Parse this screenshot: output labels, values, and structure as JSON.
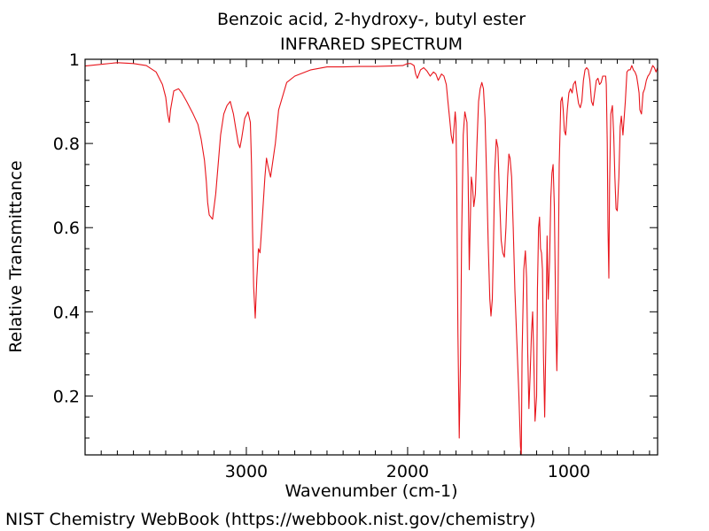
{
  "footer": "NIST Chemistry WebBook (https://webbook.nist.gov/chemistry)",
  "chart_data": {
    "type": "line",
    "title": "Benzoic acid, 2-hydroxy-, butyl ester",
    "subtitle": "INFRARED SPECTRUM",
    "xlabel": "Wavenumber (cm-1)",
    "ylabel": "Relative Transmittance",
    "xlim": [
      4000,
      450
    ],
    "ylim": [
      0.06,
      1.0
    ],
    "x_reversed": true,
    "x_ticks": [
      3000,
      2000,
      1000
    ],
    "x_tick_labels": [
      "3000",
      "2000",
      "1000"
    ],
    "y_ticks": [
      0.2,
      0.4,
      0.6,
      0.8,
      1
    ],
    "y_tick_labels": [
      "0.2",
      "0.4",
      "0.6",
      "0.8",
      "1"
    ],
    "grid": false,
    "line_color": "#e8141b",
    "series": [
      {
        "name": "IR spectrum",
        "x": [
          4000,
          3900,
          3800,
          3700,
          3620,
          3560,
          3520,
          3500,
          3488,
          3478,
          3470,
          3450,
          3420,
          3400,
          3370,
          3330,
          3300,
          3280,
          3260,
          3248,
          3240,
          3230,
          3210,
          3190,
          3160,
          3140,
          3120,
          3100,
          3080,
          3065,
          3050,
          3040,
          3030,
          3010,
          2990,
          2975,
          2968,
          2962,
          2955,
          2945,
          2935,
          2925,
          2915,
          2905,
          2895,
          2885,
          2875,
          2865,
          2850,
          2820,
          2800,
          2750,
          2700,
          2600,
          2500,
          2400,
          2300,
          2200,
          2100,
          2030,
          2000,
          1980,
          1960,
          1950,
          1940,
          1920,
          1900,
          1880,
          1860,
          1840,
          1825,
          1810,
          1790,
          1775,
          1760,
          1750,
          1740,
          1730,
          1720,
          1712,
          1705,
          1700,
          1695,
          1688,
          1680,
          1672,
          1665,
          1655,
          1645,
          1632,
          1625,
          1618,
          1612,
          1605,
          1598,
          1590,
          1580,
          1570,
          1560,
          1550,
          1540,
          1530,
          1520,
          1510,
          1500,
          1490,
          1483,
          1475,
          1468,
          1460,
          1450,
          1440,
          1430,
          1420,
          1410,
          1400,
          1390,
          1380,
          1372,
          1365,
          1355,
          1345,
          1335,
          1325,
          1320,
          1310,
          1300,
          1295,
          1290,
          1280,
          1270,
          1262,
          1255,
          1248,
          1240,
          1232,
          1225,
          1218,
          1210,
          1200,
          1195,
          1188,
          1182,
          1176,
          1170,
          1164,
          1158,
          1150,
          1142,
          1135,
          1128,
          1120,
          1112,
          1105,
          1098,
          1090,
          1082,
          1075,
          1068,
          1060,
          1050,
          1042,
          1035,
          1028,
          1020,
          1010,
          1000,
          990,
          980,
          972,
          960,
          950,
          940,
          930,
          920,
          910,
          900,
          890,
          880,
          870,
          860,
          850,
          840,
          830,
          820,
          810,
          800,
          790,
          780,
          772,
          768,
          762,
          758,
          752,
          748,
          740,
          730,
          722,
          715,
          708,
          700,
          690,
          682,
          675,
          665,
          650,
          640,
          630,
          620,
          610,
          600,
          590,
          580,
          572,
          565,
          560,
          550,
          540,
          530,
          520,
          510,
          500,
          490,
          480,
          470,
          460,
          450
        ],
        "y": [
          0.984,
          0.988,
          0.992,
          0.99,
          0.985,
          0.97,
          0.94,
          0.91,
          0.87,
          0.85,
          0.88,
          0.925,
          0.93,
          0.92,
          0.9,
          0.87,
          0.845,
          0.81,
          0.76,
          0.71,
          0.66,
          0.63,
          0.62,
          0.68,
          0.82,
          0.87,
          0.89,
          0.9,
          0.87,
          0.835,
          0.8,
          0.79,
          0.81,
          0.86,
          0.875,
          0.85,
          0.75,
          0.6,
          0.46,
          0.385,
          0.48,
          0.55,
          0.54,
          0.6,
          0.66,
          0.72,
          0.765,
          0.745,
          0.72,
          0.8,
          0.88,
          0.945,
          0.96,
          0.975,
          0.982,
          0.982,
          0.983,
          0.983,
          0.984,
          0.985,
          0.99,
          0.99,
          0.985,
          0.965,
          0.955,
          0.975,
          0.98,
          0.972,
          0.96,
          0.97,
          0.965,
          0.95,
          0.965,
          0.96,
          0.94,
          0.9,
          0.86,
          0.82,
          0.8,
          0.84,
          0.875,
          0.85,
          0.7,
          0.35,
          0.1,
          0.28,
          0.58,
          0.82,
          0.875,
          0.85,
          0.72,
          0.5,
          0.6,
          0.72,
          0.7,
          0.65,
          0.68,
          0.8,
          0.9,
          0.93,
          0.945,
          0.93,
          0.86,
          0.72,
          0.56,
          0.43,
          0.39,
          0.43,
          0.56,
          0.73,
          0.81,
          0.79,
          0.67,
          0.57,
          0.54,
          0.53,
          0.6,
          0.72,
          0.775,
          0.765,
          0.72,
          0.6,
          0.45,
          0.35,
          0.3,
          0.2,
          0.08,
          0.06,
          0.3,
          0.5,
          0.545,
          0.48,
          0.3,
          0.17,
          0.25,
          0.35,
          0.4,
          0.3,
          0.14,
          0.2,
          0.45,
          0.6,
          0.625,
          0.55,
          0.54,
          0.5,
          0.3,
          0.15,
          0.35,
          0.58,
          0.43,
          0.52,
          0.67,
          0.73,
          0.75,
          0.65,
          0.4,
          0.26,
          0.4,
          0.75,
          0.9,
          0.91,
          0.88,
          0.83,
          0.82,
          0.88,
          0.92,
          0.93,
          0.92,
          0.94,
          0.948,
          0.92,
          0.895,
          0.885,
          0.9,
          0.95,
          0.975,
          0.98,
          0.975,
          0.95,
          0.9,
          0.89,
          0.92,
          0.95,
          0.955,
          0.94,
          0.945,
          0.96,
          0.96,
          0.96,
          0.94,
          0.8,
          0.6,
          0.48,
          0.7,
          0.87,
          0.89,
          0.82,
          0.72,
          0.645,
          0.64,
          0.72,
          0.84,
          0.865,
          0.82,
          0.9,
          0.97,
          0.975,
          0.975,
          0.985,
          0.975,
          0.97,
          0.96,
          0.94,
          0.92,
          0.88,
          0.87,
          0.92,
          0.93,
          0.95,
          0.96,
          0.965,
          0.975,
          0.985,
          0.98,
          0.97,
          0.98
        ]
      }
    ]
  }
}
